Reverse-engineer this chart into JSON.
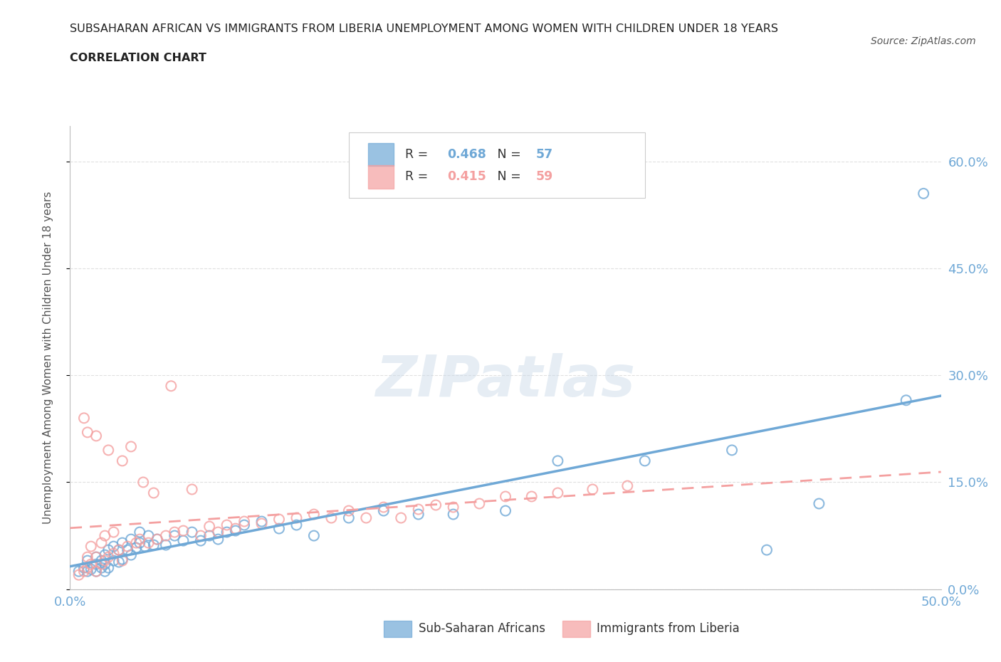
{
  "title_line1": "SUBSAHARAN AFRICAN VS IMMIGRANTS FROM LIBERIA UNEMPLOYMENT AMONG WOMEN WITH CHILDREN UNDER 18 YEARS",
  "title_line2": "CORRELATION CHART",
  "source": "Source: ZipAtlas.com",
  "watermark": "ZIPatlas",
  "ylabel": "Unemployment Among Women with Children Under 18 years",
  "xlim": [
    0.0,
    0.5
  ],
  "ylim": [
    0.0,
    0.65
  ],
  "R_blue": 0.468,
  "N_blue": 57,
  "R_pink": 0.415,
  "N_pink": 59,
  "color_blue": "#6FA8D6",
  "color_pink": "#F4A0A0",
  "legend_blue_label": "Sub-Saharan Africans",
  "legend_pink_label": "Immigrants from Liberia",
  "blue_x": [
    0.005,
    0.008,
    0.01,
    0.01,
    0.012,
    0.015,
    0.015,
    0.015,
    0.018,
    0.018,
    0.02,
    0.02,
    0.02,
    0.022,
    0.022,
    0.025,
    0.025,
    0.028,
    0.028,
    0.03,
    0.03,
    0.033,
    0.035,
    0.035,
    0.038,
    0.04,
    0.04,
    0.043,
    0.045,
    0.048,
    0.05,
    0.055,
    0.06,
    0.065,
    0.07,
    0.075,
    0.08,
    0.085,
    0.09,
    0.095,
    0.1,
    0.11,
    0.12,
    0.13,
    0.14,
    0.16,
    0.18,
    0.2,
    0.22,
    0.25,
    0.28,
    0.33,
    0.38,
    0.4,
    0.43,
    0.48,
    0.49
  ],
  "blue_y": [
    0.025,
    0.03,
    0.025,
    0.04,
    0.028,
    0.025,
    0.035,
    0.045,
    0.03,
    0.04,
    0.025,
    0.035,
    0.048,
    0.03,
    0.055,
    0.04,
    0.06,
    0.038,
    0.055,
    0.042,
    0.065,
    0.055,
    0.048,
    0.07,
    0.058,
    0.065,
    0.08,
    0.06,
    0.075,
    0.062,
    0.07,
    0.062,
    0.075,
    0.068,
    0.08,
    0.068,
    0.075,
    0.07,
    0.08,
    0.082,
    0.09,
    0.095,
    0.085,
    0.09,
    0.075,
    0.1,
    0.11,
    0.105,
    0.105,
    0.11,
    0.18,
    0.18,
    0.195,
    0.055,
    0.12,
    0.265,
    0.555
  ],
  "pink_x": [
    0.005,
    0.008,
    0.008,
    0.01,
    0.01,
    0.01,
    0.012,
    0.012,
    0.015,
    0.015,
    0.015,
    0.018,
    0.018,
    0.02,
    0.02,
    0.022,
    0.022,
    0.025,
    0.025,
    0.028,
    0.03,
    0.03,
    0.033,
    0.035,
    0.038,
    0.04,
    0.042,
    0.045,
    0.048,
    0.05,
    0.055,
    0.058,
    0.06,
    0.065,
    0.07,
    0.075,
    0.08,
    0.085,
    0.09,
    0.095,
    0.1,
    0.11,
    0.12,
    0.13,
    0.14,
    0.15,
    0.16,
    0.17,
    0.18,
    0.19,
    0.2,
    0.21,
    0.22,
    0.235,
    0.25,
    0.265,
    0.28,
    0.3,
    0.32
  ],
  "pink_y": [
    0.02,
    0.025,
    0.24,
    0.03,
    0.045,
    0.22,
    0.035,
    0.06,
    0.025,
    0.045,
    0.215,
    0.035,
    0.065,
    0.04,
    0.075,
    0.045,
    0.195,
    0.05,
    0.08,
    0.055,
    0.04,
    0.18,
    0.06,
    0.2,
    0.065,
    0.07,
    0.15,
    0.065,
    0.135,
    0.07,
    0.075,
    0.285,
    0.08,
    0.082,
    0.14,
    0.075,
    0.088,
    0.08,
    0.09,
    0.085,
    0.095,
    0.092,
    0.098,
    0.1,
    0.105,
    0.1,
    0.11,
    0.1,
    0.115,
    0.1,
    0.112,
    0.118,
    0.115,
    0.12,
    0.13,
    0.13,
    0.135,
    0.14,
    0.145
  ],
  "grid_color": "#DDDDDD",
  "background_color": "#FFFFFF",
  "title_color": "#222222",
  "axis_label_color": "#555555"
}
